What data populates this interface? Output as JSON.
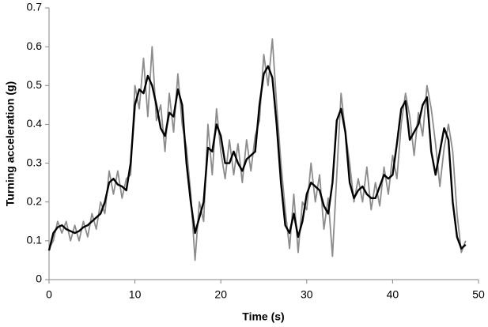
{
  "chart_data": {
    "type": "line",
    "x_label": "Time (s)",
    "y_label": "Turning acceleration (g)",
    "x": [
      0,
      0.5,
      1,
      1.5,
      2,
      2.5,
      3,
      3.5,
      4,
      4.5,
      5,
      5.5,
      6,
      6.5,
      7,
      7.5,
      8,
      8.5,
      9,
      9.5,
      10,
      10.5,
      11,
      11.5,
      12,
      12.5,
      13,
      13.5,
      14,
      14.5,
      15,
      15.5,
      16,
      16.5,
      17,
      17.5,
      18,
      18.5,
      19,
      19.5,
      20,
      20.5,
      21,
      21.5,
      22,
      22.5,
      23,
      23.5,
      24,
      24.5,
      25,
      25.5,
      26,
      26.5,
      27,
      27.5,
      28,
      28.5,
      29,
      29.5,
      30,
      30.5,
      31,
      31.5,
      32,
      32.5,
      33,
      33.5,
      34,
      34.5,
      35,
      35.5,
      36,
      36.5,
      37,
      37.5,
      38,
      38.5,
      39,
      39.5,
      40,
      40.5,
      41,
      41.5,
      42,
      42.5,
      43,
      43.5,
      44,
      44.5,
      45,
      45.5,
      46,
      46.5,
      47,
      47.5,
      48,
      48.5
    ],
    "series": [
      {
        "color": "#8c8c8c",
        "values": [
          0.08,
          0.1,
          0.15,
          0.12,
          0.15,
          0.1,
          0.14,
          0.1,
          0.15,
          0.11,
          0.17,
          0.13,
          0.2,
          0.17,
          0.28,
          0.22,
          0.28,
          0.21,
          0.26,
          0.27,
          0.5,
          0.44,
          0.57,
          0.42,
          0.6,
          0.41,
          0.45,
          0.33,
          0.48,
          0.38,
          0.53,
          0.4,
          0.34,
          0.22,
          0.05,
          0.2,
          0.15,
          0.4,
          0.27,
          0.44,
          0.33,
          0.26,
          0.36,
          0.27,
          0.35,
          0.25,
          0.36,
          0.28,
          0.37,
          0.41,
          0.58,
          0.5,
          0.62,
          0.45,
          0.3,
          0.18,
          0.08,
          0.22,
          0.07,
          0.2,
          0.18,
          0.3,
          0.2,
          0.27,
          0.13,
          0.21,
          0.06,
          0.27,
          0.48,
          0.38,
          0.3,
          0.2,
          0.26,
          0.2,
          0.29,
          0.18,
          0.25,
          0.19,
          0.29,
          0.22,
          0.32,
          0.26,
          0.4,
          0.48,
          0.42,
          0.32,
          0.43,
          0.37,
          0.5,
          0.44,
          0.35,
          0.24,
          0.34,
          0.4,
          0.33,
          0.17,
          0.07,
          0.1
        ]
      },
      {
        "color": "#000000",
        "values": [
          0.075,
          0.12,
          0.135,
          0.14,
          0.13,
          0.125,
          0.12,
          0.125,
          0.135,
          0.14,
          0.15,
          0.16,
          0.17,
          0.2,
          0.25,
          0.26,
          0.245,
          0.24,
          0.23,
          0.3,
          0.45,
          0.49,
          0.48,
          0.525,
          0.5,
          0.45,
          0.39,
          0.37,
          0.43,
          0.42,
          0.49,
          0.45,
          0.3,
          0.2,
          0.12,
          0.16,
          0.2,
          0.34,
          0.33,
          0.4,
          0.37,
          0.3,
          0.3,
          0.33,
          0.3,
          0.28,
          0.31,
          0.32,
          0.33,
          0.45,
          0.53,
          0.55,
          0.52,
          0.4,
          0.25,
          0.14,
          0.12,
          0.17,
          0.11,
          0.15,
          0.22,
          0.25,
          0.24,
          0.23,
          0.19,
          0.17,
          0.25,
          0.41,
          0.44,
          0.38,
          0.25,
          0.21,
          0.23,
          0.24,
          0.22,
          0.21,
          0.21,
          0.24,
          0.27,
          0.26,
          0.27,
          0.35,
          0.44,
          0.46,
          0.36,
          0.38,
          0.4,
          0.45,
          0.47,
          0.33,
          0.27,
          0.33,
          0.39,
          0.36,
          0.2,
          0.11,
          0.08,
          0.09
        ]
      }
    ],
    "xlim": [
      0,
      50
    ],
    "xticks": [
      0,
      10,
      20,
      30,
      40,
      50
    ],
    "ylim": [
      0,
      0.7
    ],
    "yticks": [
      0,
      0.1,
      0.2,
      0.3,
      0.4,
      0.5,
      0.6,
      0.7
    ],
    "grid": false
  }
}
